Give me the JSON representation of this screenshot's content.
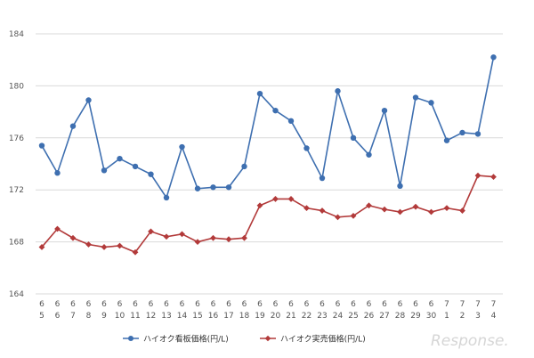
{
  "chart_data": {
    "type": "line",
    "y_ticks": [
      "164",
      "168",
      "172",
      "176",
      "180",
      "184"
    ],
    "ylim": [
      164,
      184
    ],
    "grid": "horizontal",
    "legend_placement": "bottom",
    "categories_month": [
      "6",
      "6",
      "6",
      "6",
      "6",
      "6",
      "6",
      "6",
      "6",
      "6",
      "6",
      "6",
      "6",
      "6",
      "6",
      "6",
      "6",
      "6",
      "6",
      "6",
      "6",
      "6",
      "6",
      "6",
      "6",
      "6",
      "7",
      "7",
      "7",
      "7"
    ],
    "categories_day": [
      "5",
      "6",
      "7",
      "8",
      "9",
      "10",
      "11",
      "12",
      "13",
      "14",
      "15",
      "16",
      "17",
      "18",
      "19",
      "20",
      "21",
      "22",
      "23",
      "24",
      "25",
      "26",
      "27",
      "28",
      "29",
      "30",
      "1",
      "2",
      "3",
      "4"
    ],
    "series": [
      {
        "name": "ハイオク看板価格(円/L)",
        "color": "#3e6fb0",
        "marker": "circle",
        "values": [
          175.4,
          173.3,
          176.9,
          178.9,
          173.5,
          174.4,
          173.8,
          173.2,
          171.4,
          175.3,
          172.1,
          172.2,
          172.2,
          173.8,
          179.4,
          178.1,
          177.3,
          175.2,
          172.9,
          179.6,
          176.0,
          174.7,
          178.1,
          172.3,
          179.1,
          178.7,
          175.8,
          176.4,
          176.3,
          182.2
        ]
      },
      {
        "name": "ハイオク実売価格(円/L)",
        "color": "#b23a3a",
        "marker": "diamond",
        "values": [
          167.6,
          169.0,
          168.3,
          167.8,
          167.6,
          167.7,
          167.2,
          168.8,
          168.4,
          168.6,
          168.0,
          168.3,
          168.2,
          168.3,
          170.8,
          171.3,
          171.3,
          170.6,
          170.4,
          169.9,
          170.0,
          170.8,
          170.5,
          170.3,
          170.7,
          170.3,
          170.6,
          170.4,
          173.1,
          173.0
        ]
      }
    ]
  },
  "watermark": {
    "text": "Response."
  }
}
